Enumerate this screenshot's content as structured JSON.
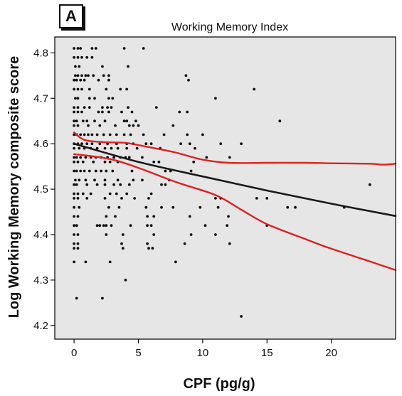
{
  "panel_label": "A",
  "chart_data": {
    "type": "scatter",
    "title": "Working Memory Index",
    "xlabel": "CPF (pg/g)",
    "ylabel": "Log Working Memory composite score",
    "xlim": [
      -1.5,
      25
    ],
    "ylim": [
      4.17,
      4.835
    ],
    "xticks": [
      0,
      5,
      10,
      15,
      20
    ],
    "yticks": [
      4.2,
      4.3,
      4.4,
      4.5,
      4.6,
      4.7,
      4.8
    ],
    "grid": false,
    "plot_background": "#e6e6e6",
    "points": [
      [
        0.0,
        4.81
      ],
      [
        0.3,
        4.81
      ],
      [
        0.5,
        4.81
      ],
      [
        1.4,
        4.81
      ],
      [
        1.7,
        4.81
      ],
      [
        3.9,
        4.81
      ],
      [
        5.4,
        4.81
      ],
      [
        0.0,
        4.79
      ],
      [
        0.3,
        4.79
      ],
      [
        0.6,
        4.79
      ],
      [
        1.0,
        4.79
      ],
      [
        1.4,
        4.79
      ],
      [
        0.1,
        4.77
      ],
      [
        0.4,
        4.77
      ],
      [
        2.2,
        4.77
      ],
      [
        4.2,
        4.77
      ],
      [
        0.1,
        4.75
      ],
      [
        0.3,
        4.75
      ],
      [
        0.6,
        4.75
      ],
      [
        0.9,
        4.75
      ],
      [
        1.1,
        4.75
      ],
      [
        1.5,
        4.75
      ],
      [
        2.3,
        4.75
      ],
      [
        2.7,
        4.75
      ],
      [
        8.7,
        4.75
      ],
      [
        0.0,
        4.74
      ],
      [
        0.2,
        4.74
      ],
      [
        0.5,
        4.74
      ],
      [
        0.8,
        4.74
      ],
      [
        1.9,
        4.74
      ],
      [
        2.7,
        4.74
      ],
      [
        8.9,
        4.74
      ],
      [
        0.0,
        4.72
      ],
      [
        0.3,
        4.72
      ],
      [
        0.6,
        4.72
      ],
      [
        1.2,
        4.72
      ],
      [
        2.5,
        4.72
      ],
      [
        3.6,
        4.72
      ],
      [
        4.1,
        4.72
      ],
      [
        14.0,
        4.72
      ],
      [
        0.1,
        4.7
      ],
      [
        0.3,
        4.7
      ],
      [
        1.2,
        4.7
      ],
      [
        1.6,
        4.7
      ],
      [
        2.7,
        4.7
      ],
      [
        3.0,
        4.7
      ],
      [
        11.0,
        4.7
      ],
      [
        0.0,
        4.68
      ],
      [
        0.3,
        4.68
      ],
      [
        0.8,
        4.68
      ],
      [
        1.2,
        4.68
      ],
      [
        2.2,
        4.68
      ],
      [
        2.6,
        4.68
      ],
      [
        2.9,
        4.68
      ],
      [
        4.2,
        4.68
      ],
      [
        6.4,
        4.68
      ],
      [
        0.0,
        4.67
      ],
      [
        0.3,
        4.67
      ],
      [
        0.6,
        4.67
      ],
      [
        1.9,
        4.67
      ],
      [
        2.2,
        4.67
      ],
      [
        2.7,
        4.67
      ],
      [
        3.7,
        4.67
      ],
      [
        4.5,
        4.67
      ],
      [
        8.2,
        4.67
      ],
      [
        8.8,
        4.67
      ],
      [
        0.0,
        4.65
      ],
      [
        0.2,
        4.65
      ],
      [
        0.7,
        4.65
      ],
      [
        1.0,
        4.65
      ],
      [
        1.6,
        4.65
      ],
      [
        2.4,
        4.65
      ],
      [
        3.9,
        4.65
      ],
      [
        4.1,
        4.65
      ],
      [
        4.8,
        4.65
      ],
      [
        16.0,
        4.65
      ],
      [
        0.0,
        4.64
      ],
      [
        0.3,
        4.64
      ],
      [
        1.1,
        4.64
      ],
      [
        2.0,
        4.64
      ],
      [
        3.2,
        4.64
      ],
      [
        4.3,
        4.64
      ],
      [
        4.6,
        4.64
      ],
      [
        5.0,
        4.64
      ],
      [
        7.7,
        4.64
      ],
      [
        0.0,
        4.62
      ],
      [
        0.2,
        4.62
      ],
      [
        0.5,
        4.62
      ],
      [
        0.8,
        4.62
      ],
      [
        1.1,
        4.62
      ],
      [
        1.4,
        4.62
      ],
      [
        1.8,
        4.62
      ],
      [
        2.3,
        4.62
      ],
      [
        2.8,
        4.62
      ],
      [
        3.3,
        4.62
      ],
      [
        3.9,
        4.62
      ],
      [
        4.4,
        4.62
      ],
      [
        5.4,
        4.62
      ],
      [
        7.0,
        4.62
      ],
      [
        8.8,
        4.62
      ],
      [
        10.0,
        4.62
      ],
      [
        0.0,
        4.6
      ],
      [
        0.3,
        4.6
      ],
      [
        0.6,
        4.6
      ],
      [
        1.0,
        4.6
      ],
      [
        1.4,
        4.6
      ],
      [
        2.0,
        4.6
      ],
      [
        2.6,
        4.6
      ],
      [
        3.3,
        4.6
      ],
      [
        4.1,
        4.6
      ],
      [
        4.6,
        4.6
      ],
      [
        5.6,
        4.6
      ],
      [
        6.0,
        4.6
      ],
      [
        8.3,
        4.6
      ],
      [
        9.0,
        4.6
      ],
      [
        11.4,
        4.6
      ],
      [
        13.0,
        4.6
      ],
      [
        0.0,
        4.59
      ],
      [
        0.4,
        4.59
      ],
      [
        0.8,
        4.59
      ],
      [
        1.3,
        4.59
      ],
      [
        1.8,
        4.59
      ],
      [
        2.4,
        4.59
      ],
      [
        2.9,
        4.59
      ],
      [
        3.4,
        4.59
      ],
      [
        4.1,
        4.59
      ],
      [
        4.9,
        4.59
      ],
      [
        6.7,
        4.59
      ],
      [
        9.4,
        4.59
      ],
      [
        0.0,
        4.57
      ],
      [
        0.2,
        4.57
      ],
      [
        0.5,
        4.57
      ],
      [
        0.9,
        4.57
      ],
      [
        1.3,
        4.57
      ],
      [
        1.7,
        4.57
      ],
      [
        2.1,
        4.57
      ],
      [
        2.6,
        4.57
      ],
      [
        3.1,
        4.57
      ],
      [
        3.6,
        4.57
      ],
      [
        4.0,
        4.57
      ],
      [
        4.3,
        4.57
      ],
      [
        5.3,
        4.57
      ],
      [
        10.3,
        4.57
      ],
      [
        12.1,
        4.57
      ],
      [
        0.0,
        4.56
      ],
      [
        0.3,
        4.56
      ],
      [
        0.7,
        4.56
      ],
      [
        1.5,
        4.56
      ],
      [
        2.4,
        4.56
      ],
      [
        2.8,
        4.56
      ],
      [
        3.4,
        4.56
      ],
      [
        6.2,
        4.56
      ],
      [
        6.6,
        4.56
      ],
      [
        9.3,
        4.56
      ],
      [
        0.0,
        4.54
      ],
      [
        0.2,
        4.54
      ],
      [
        0.5,
        4.54
      ],
      [
        0.8,
        4.54
      ],
      [
        1.2,
        4.54
      ],
      [
        1.7,
        4.54
      ],
      [
        2.1,
        4.54
      ],
      [
        2.5,
        4.54
      ],
      [
        3.0,
        4.54
      ],
      [
        4.5,
        4.54
      ],
      [
        7.1,
        4.54
      ],
      [
        7.5,
        4.54
      ],
      [
        9.1,
        4.54
      ],
      [
        0.1,
        4.52
      ],
      [
        0.4,
        4.52
      ],
      [
        0.9,
        4.52
      ],
      [
        1.6,
        4.52
      ],
      [
        2.4,
        4.52
      ],
      [
        3.4,
        4.52
      ],
      [
        4.6,
        4.52
      ],
      [
        5.3,
        4.52
      ],
      [
        7.4,
        4.52
      ],
      [
        0.0,
        4.51
      ],
      [
        0.2,
        4.51
      ],
      [
        1.0,
        4.51
      ],
      [
        1.8,
        4.51
      ],
      [
        2.4,
        4.51
      ],
      [
        3.1,
        4.51
      ],
      [
        3.6,
        4.51
      ],
      [
        4.3,
        4.51
      ],
      [
        6.8,
        4.51
      ],
      [
        7.1,
        4.51
      ],
      [
        23.0,
        4.51
      ],
      [
        0.0,
        4.49
      ],
      [
        0.3,
        4.49
      ],
      [
        0.7,
        4.49
      ],
      [
        1.3,
        4.49
      ],
      [
        2.8,
        4.49
      ],
      [
        3.3,
        4.49
      ],
      [
        4.1,
        4.49
      ],
      [
        6.0,
        4.49
      ],
      [
        0.0,
        4.48
      ],
      [
        0.3,
        4.48
      ],
      [
        1.0,
        4.48
      ],
      [
        2.4,
        4.48
      ],
      [
        3.7,
        4.48
      ],
      [
        4.7,
        4.48
      ],
      [
        5.8,
        4.48
      ],
      [
        11.0,
        4.48
      ],
      [
        11.4,
        4.48
      ],
      [
        14.2,
        4.48
      ],
      [
        15.0,
        4.48
      ],
      [
        0.0,
        4.46
      ],
      [
        0.4,
        4.46
      ],
      [
        2.7,
        4.46
      ],
      [
        3.5,
        4.46
      ],
      [
        5.6,
        4.46
      ],
      [
        6.8,
        4.46
      ],
      [
        7.7,
        4.46
      ],
      [
        9.8,
        4.46
      ],
      [
        11.2,
        4.46
      ],
      [
        16.6,
        4.46
      ],
      [
        17.2,
        4.46
      ],
      [
        21.0,
        4.46
      ],
      [
        0.0,
        4.44
      ],
      [
        0.3,
        4.44
      ],
      [
        2.5,
        4.44
      ],
      [
        3.2,
        4.44
      ],
      [
        5.7,
        4.44
      ],
      [
        6.2,
        4.44
      ],
      [
        9.0,
        4.44
      ],
      [
        12.0,
        4.44
      ],
      [
        0.0,
        4.42
      ],
      [
        0.2,
        4.42
      ],
      [
        1.8,
        4.42
      ],
      [
        2.0,
        4.42
      ],
      [
        2.3,
        4.42
      ],
      [
        2.5,
        4.42
      ],
      [
        2.9,
        4.42
      ],
      [
        4.4,
        4.42
      ],
      [
        5.7,
        4.42
      ],
      [
        6.0,
        4.42
      ],
      [
        10.2,
        4.42
      ],
      [
        11.9,
        4.42
      ],
      [
        15.0,
        4.42
      ],
      [
        0.0,
        4.4
      ],
      [
        0.3,
        4.4
      ],
      [
        2.5,
        4.4
      ],
      [
        3.8,
        4.4
      ],
      [
        6.2,
        4.4
      ],
      [
        9.1,
        4.4
      ],
      [
        11.0,
        4.4
      ],
      [
        0.0,
        4.38
      ],
      [
        0.3,
        4.38
      ],
      [
        3.7,
        4.38
      ],
      [
        5.7,
        4.38
      ],
      [
        8.6,
        4.38
      ],
      [
        12.1,
        4.38
      ],
      [
        0.0,
        4.37
      ],
      [
        0.3,
        4.37
      ],
      [
        3.8,
        4.37
      ],
      [
        5.8,
        4.37
      ],
      [
        6.1,
        4.37
      ],
      [
        0.0,
        4.34
      ],
      [
        0.9,
        4.34
      ],
      [
        2.8,
        4.34
      ],
      [
        7.9,
        4.34
      ],
      [
        4.0,
        4.3
      ],
      [
        0.2,
        4.26
      ],
      [
        2.2,
        4.26
      ],
      [
        13.0,
        4.22
      ]
    ],
    "series": [
      {
        "role": "fit",
        "color": "#1a1a1a",
        "x": [
          0,
          5,
          10,
          15,
          20,
          25
        ],
        "y": [
          4.6,
          4.56,
          4.528,
          4.497,
          4.468,
          4.441
        ]
      },
      {
        "role": "upper-ci",
        "color": "#e02020",
        "x": [
          0,
          0.5,
          1,
          2,
          3,
          4,
          5,
          7,
          8,
          10,
          12,
          15,
          18,
          20,
          23,
          24,
          25
        ],
        "y": [
          4.625,
          4.613,
          4.607,
          4.604,
          4.603,
          4.602,
          4.597,
          4.586,
          4.58,
          4.565,
          4.558,
          4.558,
          4.558,
          4.557,
          4.556,
          4.554,
          4.556
        ]
      },
      {
        "role": "lower-ci",
        "color": "#e02020",
        "x": [
          0,
          1,
          3,
          5,
          8,
          11,
          13,
          15,
          18,
          20,
          23,
          25
        ],
        "y": [
          4.577,
          4.574,
          4.565,
          4.547,
          4.515,
          4.487,
          4.455,
          4.423,
          4.39,
          4.369,
          4.341,
          4.322
        ]
      }
    ]
  }
}
